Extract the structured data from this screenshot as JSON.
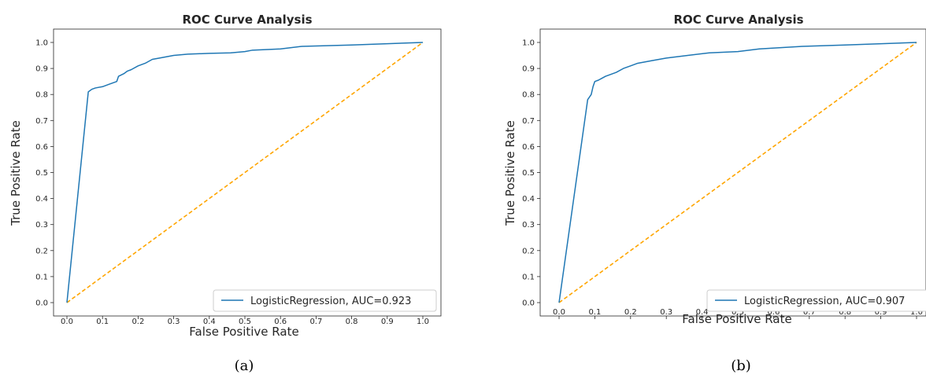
{
  "chart_data": [
    {
      "type": "line",
      "title": "ROC Curve Analysis",
      "xlabel": "False Positive Rate",
      "ylabel": "True Positive Rate",
      "caption": "(a)",
      "xlim": [
        0,
        1
      ],
      "ylim": [
        0,
        1
      ],
      "xticks": [
        "0.0",
        "0.1",
        "0.2",
        "0.3",
        "0.4",
        "0.5",
        "0.6",
        "0.7",
        "0.8",
        "0.9",
        "1.0"
      ],
      "yticks": [
        "0.0",
        "0.1",
        "0.2",
        "0.3",
        "0.4",
        "0.5",
        "0.6",
        "0.7",
        "0.8",
        "0.9",
        "1.0"
      ],
      "grid": false,
      "legend_position": "lower-right",
      "series": [
        {
          "name": "LogisticRegression, AUC=0.923",
          "color": "#1f77b4",
          "style": "solid",
          "x": [
            0.0,
            0.06,
            0.07,
            0.08,
            0.1,
            0.12,
            0.14,
            0.145,
            0.16,
            0.17,
            0.18,
            0.2,
            0.22,
            0.24,
            0.26,
            0.3,
            0.34,
            0.4,
            0.46,
            0.5,
            0.52,
            0.6,
            0.66,
            0.8,
            1.0
          ],
          "y": [
            0.0,
            0.81,
            0.82,
            0.825,
            0.83,
            0.84,
            0.85,
            0.87,
            0.88,
            0.89,
            0.895,
            0.91,
            0.92,
            0.935,
            0.94,
            0.95,
            0.955,
            0.958,
            0.96,
            0.965,
            0.97,
            0.975,
            0.985,
            0.99,
            1.0
          ]
        },
        {
          "name": "",
          "color": "#ffa500",
          "style": "dashed",
          "x": [
            0,
            1
          ],
          "y": [
            0,
            1
          ]
        }
      ]
    },
    {
      "type": "line",
      "title": "ROC Curve Analysis",
      "xlabel": "False Positive Rate",
      "ylabel": "True Positive Rate",
      "caption": "(b)",
      "xlim": [
        0,
        1
      ],
      "ylim": [
        0,
        1
      ],
      "xticks": [
        "0.0",
        "0.1",
        "0.2",
        "0.3",
        "0.4",
        "0.5",
        "0.6",
        "0.7",
        "0.8",
        "0.9",
        "1.0"
      ],
      "yticks": [
        "0.0",
        "0.1",
        "0.2",
        "0.3",
        "0.4",
        "0.5",
        "0.6",
        "0.7",
        "0.8",
        "0.9",
        "1.0"
      ],
      "grid": false,
      "legend_position": "lower-right",
      "series": [
        {
          "name": "LogisticRegression, AUC=0.907",
          "color": "#1f77b4",
          "style": "solid",
          "x": [
            0.0,
            0.08,
            0.09,
            0.095,
            0.1,
            0.11,
            0.13,
            0.16,
            0.18,
            0.2,
            0.22,
            0.26,
            0.3,
            0.36,
            0.42,
            0.5,
            0.56,
            0.62,
            0.68,
            0.8,
            1.0
          ],
          "y": [
            0.0,
            0.78,
            0.8,
            0.83,
            0.85,
            0.855,
            0.87,
            0.885,
            0.9,
            0.91,
            0.92,
            0.93,
            0.94,
            0.95,
            0.96,
            0.965,
            0.975,
            0.98,
            0.985,
            0.99,
            1.0
          ]
        },
        {
          "name": "",
          "color": "#ffa500",
          "style": "dashed",
          "x": [
            0,
            1
          ],
          "y": [
            0,
            1
          ]
        }
      ]
    }
  ]
}
